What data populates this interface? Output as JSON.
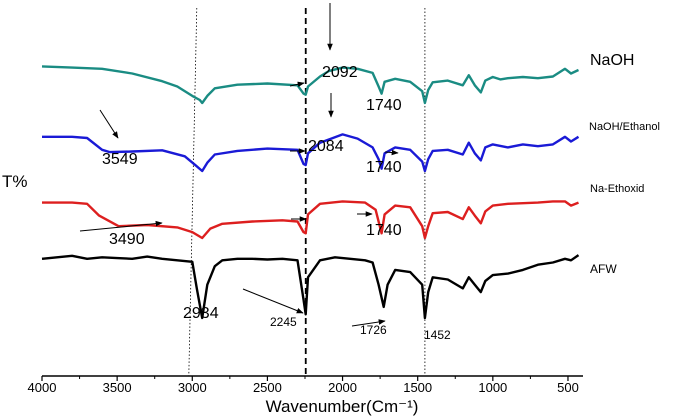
{
  "chart_data": {
    "type": "line",
    "xlabel": "Wavenumber(Cm⁻¹)",
    "ylabel": "T%",
    "xlim": [
      4000,
      400
    ],
    "x_reversed": true,
    "x_ticks": [
      4000,
      3500,
      3000,
      2500,
      2000,
      1500,
      1000,
      500
    ],
    "grid": false,
    "reference_lines": [
      {
        "x": 2970,
        "style": "dotted"
      },
      {
        "x": 2245,
        "style": "dashed"
      },
      {
        "x": 1452,
        "style": "dotted"
      }
    ],
    "series": [
      {
        "name": "NaOH",
        "color": "#1a8c83",
        "points": [
          [
            4000,
            0.62
          ],
          [
            3800,
            0.6
          ],
          [
            3600,
            0.58
          ],
          [
            3400,
            0.5
          ],
          [
            3200,
            0.37
          ],
          [
            3100,
            0.28
          ],
          [
            3000,
            0.12
          ],
          [
            2950,
            0.05
          ],
          [
            2934,
            0.0
          ],
          [
            2900,
            0.12
          ],
          [
            2850,
            0.25
          ],
          [
            2700,
            0.31
          ],
          [
            2500,
            0.33
          ],
          [
            2300,
            0.3
          ],
          [
            2260,
            0.16
          ],
          [
            2245,
            0.14
          ],
          [
            2230,
            0.28
          ],
          [
            2150,
            0.45
          ],
          [
            2092,
            0.54
          ],
          [
            2000,
            0.6
          ],
          [
            1900,
            0.58
          ],
          [
            1800,
            0.51
          ],
          [
            1760,
            0.28
          ],
          [
            1740,
            0.16
          ],
          [
            1720,
            0.36
          ],
          [
            1650,
            0.41
          ],
          [
            1550,
            0.36
          ],
          [
            1470,
            0.2
          ],
          [
            1452,
            0.0
          ],
          [
            1430,
            0.22
          ],
          [
            1400,
            0.35
          ],
          [
            1300,
            0.38
          ],
          [
            1200,
            0.3
          ],
          [
            1160,
            0.47
          ],
          [
            1120,
            0.3
          ],
          [
            1080,
            0.18
          ],
          [
            1050,
            0.38
          ],
          [
            1000,
            0.44
          ],
          [
            950,
            0.4
          ],
          [
            900,
            0.42
          ],
          [
            800,
            0.44
          ],
          [
            700,
            0.42
          ],
          [
            600,
            0.45
          ],
          [
            520,
            0.58
          ],
          [
            480,
            0.5
          ],
          [
            430,
            0.56
          ]
        ]
      },
      {
        "name": "NaOH/Ethanol",
        "color": "#1a1ad6",
        "points": [
          [
            4000,
            0.58
          ],
          [
            3800,
            0.58
          ],
          [
            3700,
            0.56
          ],
          [
            3600,
            0.36
          ],
          [
            3549,
            0.32
          ],
          [
            3400,
            0.33
          ],
          [
            3200,
            0.35
          ],
          [
            3050,
            0.25
          ],
          [
            2980,
            0.1
          ],
          [
            2934,
            0.0
          ],
          [
            2900,
            0.14
          ],
          [
            2850,
            0.28
          ],
          [
            2700,
            0.34
          ],
          [
            2500,
            0.38
          ],
          [
            2300,
            0.36
          ],
          [
            2260,
            0.12
          ],
          [
            2245,
            0.1
          ],
          [
            2230,
            0.3
          ],
          [
            2150,
            0.48
          ],
          [
            2084,
            0.54
          ],
          [
            2000,
            0.62
          ],
          [
            1900,
            0.55
          ],
          [
            1800,
            0.4
          ],
          [
            1760,
            0.2
          ],
          [
            1740,
            0.04
          ],
          [
            1720,
            0.3
          ],
          [
            1650,
            0.4
          ],
          [
            1550,
            0.36
          ],
          [
            1470,
            0.16
          ],
          [
            1452,
            0.0
          ],
          [
            1430,
            0.2
          ],
          [
            1400,
            0.34
          ],
          [
            1300,
            0.36
          ],
          [
            1200,
            0.28
          ],
          [
            1160,
            0.48
          ],
          [
            1120,
            0.3
          ],
          [
            1080,
            0.18
          ],
          [
            1050,
            0.4
          ],
          [
            1000,
            0.45
          ],
          [
            900,
            0.4
          ],
          [
            800,
            0.45
          ],
          [
            700,
            0.42
          ],
          [
            600,
            0.45
          ],
          [
            520,
            0.58
          ],
          [
            480,
            0.5
          ],
          [
            430,
            0.58
          ]
        ]
      },
      {
        "name": "Na-Ethoxid",
        "color": "#dd1f1f",
        "points": [
          [
            4000,
            0.6
          ],
          [
            3800,
            0.6
          ],
          [
            3700,
            0.58
          ],
          [
            3620,
            0.38
          ],
          [
            3490,
            0.2
          ],
          [
            3300,
            0.22
          ],
          [
            3100,
            0.18
          ],
          [
            3000,
            0.1
          ],
          [
            2934,
            0.0
          ],
          [
            2880,
            0.16
          ],
          [
            2800,
            0.24
          ],
          [
            2600,
            0.28
          ],
          [
            2400,
            0.3
          ],
          [
            2300,
            0.28
          ],
          [
            2260,
            0.1
          ],
          [
            2245,
            0.08
          ],
          [
            2230,
            0.4
          ],
          [
            2150,
            0.58
          ],
          [
            2000,
            0.62
          ],
          [
            1850,
            0.6
          ],
          [
            1780,
            0.48
          ],
          [
            1740,
            0.08
          ],
          [
            1720,
            0.4
          ],
          [
            1650,
            0.55
          ],
          [
            1550,
            0.52
          ],
          [
            1470,
            0.2
          ],
          [
            1452,
            0.0
          ],
          [
            1430,
            0.2
          ],
          [
            1400,
            0.42
          ],
          [
            1300,
            0.44
          ],
          [
            1200,
            0.32
          ],
          [
            1160,
            0.52
          ],
          [
            1120,
            0.38
          ],
          [
            1080,
            0.25
          ],
          [
            1050,
            0.45
          ],
          [
            1000,
            0.55
          ],
          [
            900,
            0.58
          ],
          [
            700,
            0.6
          ],
          [
            600,
            0.62
          ],
          [
            520,
            0.62
          ],
          [
            480,
            0.55
          ],
          [
            430,
            0.6
          ]
        ]
      },
      {
        "name": "AFW",
        "color": "#000000",
        "points": [
          [
            4000,
            0.8
          ],
          [
            3900,
            0.82
          ],
          [
            3800,
            0.84
          ],
          [
            3700,
            0.8
          ],
          [
            3600,
            0.82
          ],
          [
            3500,
            0.81
          ],
          [
            3400,
            0.8
          ],
          [
            3300,
            0.83
          ],
          [
            3200,
            0.8
          ],
          [
            3100,
            0.78
          ],
          [
            3000,
            0.76
          ],
          [
            2970,
            0.4
          ],
          [
            2934,
            0.0
          ],
          [
            2900,
            0.45
          ],
          [
            2850,
            0.7
          ],
          [
            2800,
            0.78
          ],
          [
            2700,
            0.8
          ],
          [
            2600,
            0.8
          ],
          [
            2500,
            0.79
          ],
          [
            2400,
            0.8
          ],
          [
            2300,
            0.78
          ],
          [
            2260,
            0.25
          ],
          [
            2245,
            0.05
          ],
          [
            2230,
            0.55
          ],
          [
            2150,
            0.78
          ],
          [
            2050,
            0.82
          ],
          [
            1950,
            0.8
          ],
          [
            1850,
            0.78
          ],
          [
            1800,
            0.75
          ],
          [
            1760,
            0.45
          ],
          [
            1726,
            0.15
          ],
          [
            1700,
            0.45
          ],
          [
            1650,
            0.65
          ],
          [
            1550,
            0.62
          ],
          [
            1470,
            0.45
          ],
          [
            1452,
            0.0
          ],
          [
            1430,
            0.35
          ],
          [
            1400,
            0.55
          ],
          [
            1300,
            0.52
          ],
          [
            1200,
            0.4
          ],
          [
            1160,
            0.55
          ],
          [
            1120,
            0.45
          ],
          [
            1080,
            0.35
          ],
          [
            1050,
            0.5
          ],
          [
            1000,
            0.58
          ],
          [
            900,
            0.6
          ],
          [
            800,
            0.65
          ],
          [
            700,
            0.72
          ],
          [
            600,
            0.75
          ],
          [
            520,
            0.8
          ],
          [
            480,
            0.78
          ],
          [
            430,
            0.85
          ]
        ]
      }
    ],
    "annotations": [
      {
        "text": "2092",
        "series": 0
      },
      {
        "text": "1740",
        "series": 0
      },
      {
        "text": "3549",
        "series": 1
      },
      {
        "text": "2084",
        "series": 1
      },
      {
        "text": "1740",
        "series": 1
      },
      {
        "text": "3490",
        "series": 2
      },
      {
        "text": "1740",
        "series": 2
      },
      {
        "text": "2934",
        "series": 3
      },
      {
        "text": "2245",
        "series": 3
      },
      {
        "text": "1726",
        "series": 3
      },
      {
        "text": "1452",
        "series": 3
      }
    ]
  }
}
